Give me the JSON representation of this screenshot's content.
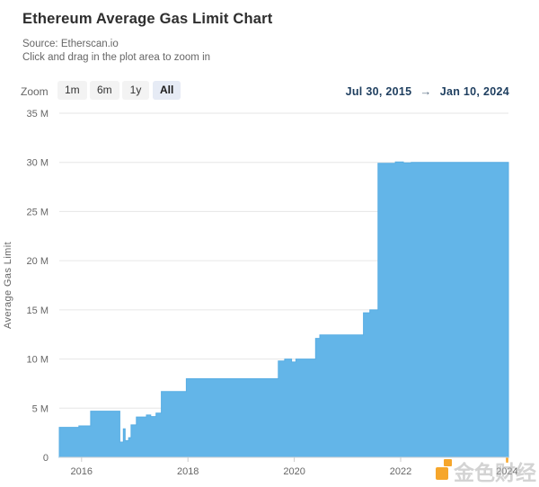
{
  "header": {
    "title": "Ethereum Average Gas Limit Chart",
    "source_line": "Source: Etherscan.io",
    "hint_line": "Click and drag in the plot area to zoom in"
  },
  "toolbar": {
    "zoom_label": "Zoom",
    "buttons": [
      {
        "label": "1m",
        "active": false
      },
      {
        "label": "6m",
        "active": false
      },
      {
        "label": "1y",
        "active": false
      },
      {
        "label": "All",
        "active": true
      }
    ],
    "range": {
      "from": "Jul 30, 2015",
      "arrow": "→",
      "to": "Jan 10, 2024"
    }
  },
  "watermark": {
    "text": "金色财经",
    "accent": "'",
    "color": "#f6a62b"
  },
  "chart_data": {
    "type": "area",
    "title": "Ethereum Average Gas Limit Chart",
    "ylabel": "Average Gas Limit",
    "xlabel": "",
    "grid": true,
    "legend": false,
    "ylim_millions": [
      0,
      35
    ],
    "ytick_step_millions": 5,
    "ytick_labels": [
      "0",
      "5 M",
      "10 M",
      "15 M",
      "20 M",
      "25 M",
      "30 M",
      "35 M"
    ],
    "xticks_years": [
      2016,
      2018,
      2020,
      2022,
      2024
    ],
    "x_range_decimal_years": [
      2015.581,
      2024.027
    ],
    "x_range_text": [
      "Jul 30, 2015",
      "Jan 10, 2024"
    ],
    "series": [
      {
        "name": "Average Gas Limit",
        "step": true,
        "unit": "million gas",
        "points_year_value_millions": [
          [
            2015.581,
            3.05
          ],
          [
            2015.95,
            3.2
          ],
          [
            2016.17,
            4.7
          ],
          [
            2016.72,
            1.55
          ],
          [
            2016.785,
            2.9
          ],
          [
            2016.82,
            1.7
          ],
          [
            2016.885,
            2.0
          ],
          [
            2016.93,
            3.3
          ],
          [
            2017.03,
            4.1
          ],
          [
            2017.22,
            4.3
          ],
          [
            2017.3,
            4.15
          ],
          [
            2017.4,
            4.5
          ],
          [
            2017.5,
            6.7
          ],
          [
            2017.97,
            8.0
          ],
          [
            2019.7,
            9.8
          ],
          [
            2019.82,
            10.0
          ],
          [
            2019.95,
            9.7
          ],
          [
            2020.03,
            10.0
          ],
          [
            2020.4,
            12.1
          ],
          [
            2020.48,
            12.45
          ],
          [
            2021.3,
            14.7
          ],
          [
            2021.42,
            15.0
          ],
          [
            2021.575,
            29.9
          ],
          [
            2021.9,
            30.05
          ],
          [
            2022.05,
            29.95
          ],
          [
            2022.2,
            30.0
          ],
          [
            2024.027,
            30.0
          ]
        ]
      }
    ],
    "colors": {
      "area": "#63b5e8",
      "area_edge": "#58ade3",
      "grid": "#e6e6e6",
      "axis_line": "#d4d4d4",
      "tick": "#cccccc",
      "label": "#666666"
    }
  }
}
